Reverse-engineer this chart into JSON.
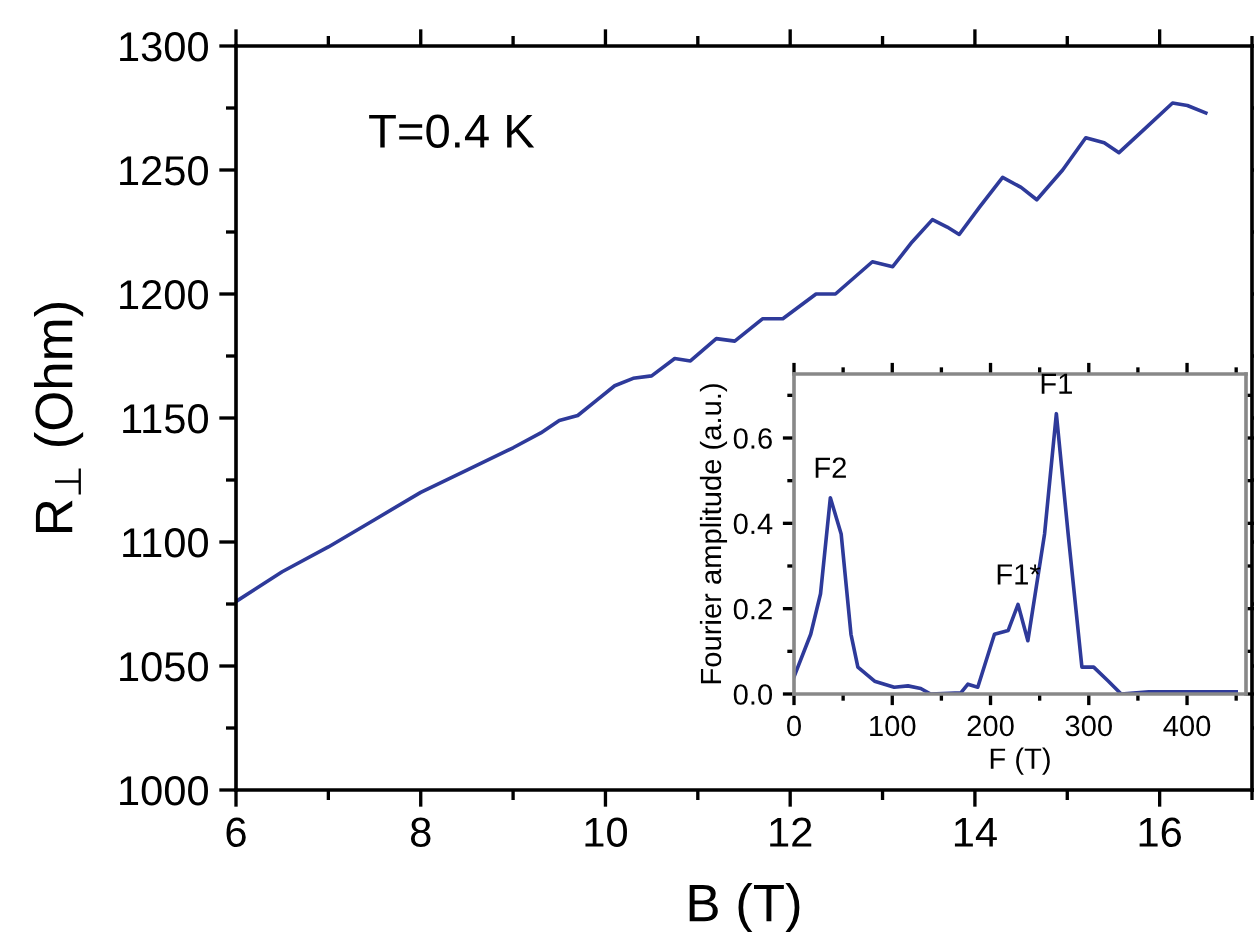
{
  "chart_data": [
    {
      "type": "line",
      "xlabel": "B (T)",
      "ylabel": "R$_{⊥}$ (Ohm)",
      "annotations": [
        "T=0.4 K"
      ],
      "xlim": [
        6,
        17
      ],
      "ylim": [
        1000,
        1300
      ],
      "xticks": [
        6,
        {
          "value": 7,
          "label": null
        },
        8,
        {
          "value": 9,
          "label": null
        },
        10,
        {
          "value": 11,
          "label": null
        },
        12,
        {
          "value": 13,
          "label": null
        },
        14,
        {
          "value": 15,
          "label": null
        },
        16,
        {
          "value": 17,
          "label": null
        }
      ],
      "yticks": [
        1000,
        {
          "value": 1025,
          "label": null
        },
        1050,
        {
          "value": 1075,
          "label": null
        },
        1100,
        {
          "value": 1125,
          "label": null
        },
        1150,
        {
          "value": 1175,
          "label": null
        },
        1200,
        {
          "value": 1225,
          "label": null
        },
        1250,
        {
          "value": 1275,
          "label": null
        },
        1300
      ],
      "grid": false,
      "legend": false,
      "series": [
        {
          "color": "#2e3a9a",
          "x": [
            6.0,
            6.5,
            7.0,
            7.5,
            8.0,
            8.5,
            9.0,
            9.3,
            9.5,
            9.7,
            9.9,
            10.1,
            10.3,
            10.5,
            10.75,
            10.92,
            11.2,
            11.4,
            11.7,
            11.92,
            12.28,
            12.49,
            12.89,
            13.11,
            13.32,
            13.54,
            13.7,
            13.83,
            14.05,
            14.3,
            14.5,
            14.67,
            14.95,
            15.2,
            15.4,
            15.56,
            15.85,
            16.14,
            16.3,
            16.5
          ],
          "values": [
            1076,
            1088,
            1098,
            1109,
            1120,
            1129,
            1138,
            1144,
            1149,
            1151,
            1157,
            1163,
            1166,
            1167,
            1174,
            1173,
            1182,
            1181,
            1190,
            1190,
            1200,
            1200,
            1213,
            1211,
            1221,
            1230,
            1227,
            1224,
            1235,
            1247,
            1243,
            1238,
            1250,
            1263,
            1261,
            1257,
            1267,
            1277,
            1276,
            1273
          ]
        }
      ]
    },
    {
      "type": "line",
      "xlabel": "F (T)",
      "ylabel": "Fourier amplitude (a.u.)",
      "xlim": [
        0,
        460
      ],
      "ylim": [
        0,
        0.75
      ],
      "xticks": [
        0,
        {
          "value": 50,
          "label": null
        },
        100,
        {
          "value": 150,
          "label": null
        },
        200,
        {
          "value": 250,
          "label": null
        },
        300,
        {
          "value": 350,
          "label": null
        },
        400,
        {
          "value": 450,
          "label": null
        }
      ],
      "yticks": [
        {
          "value": 0,
          "label": "0.0"
        },
        {
          "value": 0.1,
          "label": null
        },
        0.2,
        {
          "value": 0.3,
          "label": null
        },
        0.4,
        {
          "value": 0.5,
          "label": null
        },
        0.6,
        {
          "value": 0.7,
          "label": null
        }
      ],
      "grid": false,
      "legend": false,
      "annotations": [
        {
          "text": "F2",
          "x": 37,
          "y": 0.46
        },
        {
          "text": "F1*",
          "x": 228,
          "y": 0.21
        },
        {
          "text": "F1",
          "x": 267,
          "y": 0.657
        }
      ],
      "series": [
        {
          "color": "#2e3a9a",
          "x": [
            0,
            17,
            27,
            37,
            48,
            58,
            65,
            82,
            102,
            116,
            129,
            139,
            170,
            177,
            187,
            204,
            218,
            228,
            238,
            255,
            267,
            279,
            293,
            305,
            320,
            333,
            361,
            450
          ],
          "values": [
            0.04,
            0.14,
            0.235,
            0.46,
            0.375,
            0.14,
            0.063,
            0.03,
            0.016,
            0.019,
            0.013,
            0,
            0.003,
            0.023,
            0.016,
            0.14,
            0.149,
            0.21,
            0.125,
            0.375,
            0.657,
            0.375,
            0.063,
            0.063,
            0.03,
            0,
            0.005,
            0.005
          ]
        }
      ]
    }
  ]
}
